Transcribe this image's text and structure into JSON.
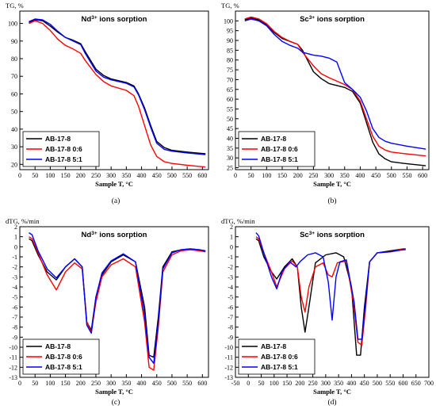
{
  "figure": {
    "panels": [
      {
        "id": "a",
        "caption": "(a)",
        "title_prefix": "Nd",
        "title_sup": "3+",
        "title_suffix": " ions sorption",
        "ylabel": "TG, %",
        "xlabel": "Sample T, °C",
        "legend": [
          "AB-17-8",
          "AB-17-8 0:6",
          "AB-17-8 5:1"
        ]
      },
      {
        "id": "b",
        "caption": "(b)",
        "title_prefix": "Sc",
        "title_sup": "3+",
        "title_suffix": " ions sorption",
        "ylabel": "TG, %",
        "xlabel": "Sample T, °C",
        "legend": [
          "AB-17-8",
          "AB-17-8 0:6",
          "AB-17-8 5:1"
        ]
      },
      {
        "id": "c",
        "caption": "(c)",
        "title_prefix": "Nd",
        "title_sup": "3+",
        "title_suffix": " ions sorption",
        "ylabel": "dTG, %/min",
        "xlabel": "Sample T, °C",
        "legend": [
          "AB-17-8",
          "AB-17-8 0:6",
          "AB-17-8 5:1"
        ]
      },
      {
        "id": "d",
        "caption": "(d)",
        "title_prefix": "Sc",
        "title_sup": "3+",
        "title_suffix": " ions sorption",
        "ylabel": "dTG, %/min",
        "xlabel": "Sample T, °C",
        "legend": [
          "AB-17-8",
          "AB-17-8 0:6",
          "AB-17-8 5:1"
        ]
      }
    ]
  },
  "chart_data": [
    {
      "type": "line",
      "panel": "a",
      "title": "Nd3+ ions sorption",
      "xlabel": "Sample T, °C",
      "ylabel": "TG, %",
      "xlim": [
        0,
        620
      ],
      "ylim": [
        17,
        107
      ],
      "xticks": [
        0,
        50,
        100,
        150,
        200,
        250,
        300,
        350,
        400,
        450,
        500,
        550,
        600
      ],
      "yticks": [
        20,
        30,
        40,
        50,
        60,
        70,
        80,
        90,
        100
      ],
      "legend_position": "bottom-left",
      "series": [
        {
          "name": "AB-17-8",
          "color": "#000000",
          "x": [
            30,
            50,
            75,
            100,
            125,
            150,
            175,
            200,
            215,
            250,
            275,
            300,
            350,
            375,
            390,
            410,
            430,
            450,
            475,
            500,
            550,
            610
          ],
          "y": [
            100.5,
            102,
            101.5,
            98.5,
            95,
            92,
            90.5,
            88.5,
            84,
            74,
            70.5,
            68.5,
            66.5,
            64.5,
            60,
            52,
            42,
            33,
            29.5,
            28,
            27,
            26
          ]
        },
        {
          "name": "AB-17-8 0:6",
          "color": "#ff0000",
          "x": [
            30,
            50,
            75,
            100,
            125,
            150,
            175,
            200,
            215,
            250,
            275,
            300,
            350,
            375,
            390,
            410,
            430,
            450,
            475,
            500,
            550,
            610
          ],
          "y": [
            100,
            101.5,
            100,
            96,
            91,
            87.5,
            85.5,
            83,
            79,
            71,
            67,
            64.5,
            62,
            59,
            53,
            42,
            31,
            24.5,
            21.5,
            20.5,
            19.5,
            18.5
          ]
        },
        {
          "name": "AB-17-8 5:1",
          "color": "#0000ff",
          "x": [
            30,
            50,
            75,
            100,
            125,
            150,
            175,
            200,
            215,
            250,
            275,
            300,
            350,
            375,
            390,
            410,
            430,
            450,
            475,
            500,
            550,
            610
          ],
          "y": [
            101,
            102.5,
            102,
            99.5,
            95.5,
            92,
            90,
            88,
            83,
            73,
            69.5,
            68,
            66,
            64,
            59.5,
            51,
            41,
            32,
            28.5,
            27.5,
            26.5,
            25.5
          ]
        }
      ]
    },
    {
      "type": "line",
      "panel": "b",
      "title": "Sc3+ ions sorption",
      "xlabel": "Sample T, °C",
      "ylabel": "TG, %",
      "xlim": [
        0,
        620
      ],
      "ylim": [
        24,
        105
      ],
      "xticks": [
        0,
        50,
        100,
        150,
        200,
        250,
        300,
        350,
        400,
        450,
        500,
        550,
        600
      ],
      "yticks": [
        25,
        30,
        35,
        40,
        45,
        50,
        55,
        60,
        65,
        70,
        75,
        80,
        85,
        90,
        95,
        100
      ],
      "legend_position": "bottom-left",
      "series": [
        {
          "name": "AB-17-8",
          "color": "#000000",
          "x": [
            30,
            50,
            75,
            100,
            125,
            150,
            175,
            200,
            215,
            250,
            275,
            300,
            350,
            375,
            400,
            420,
            440,
            460,
            480,
            500,
            550,
            610
          ],
          "y": [
            100.5,
            101.5,
            100.5,
            98,
            94,
            91,
            89.5,
            88,
            85,
            74,
            70.5,
            68,
            66,
            64,
            58,
            48,
            38,
            32,
            29.5,
            28,
            27,
            26
          ]
        },
        {
          "name": "AB-17-8 0:6",
          "color": "#ff0000",
          "x": [
            30,
            50,
            75,
            100,
            125,
            150,
            175,
            200,
            215,
            250,
            275,
            300,
            350,
            375,
            400,
            420,
            440,
            460,
            480,
            500,
            550,
            610
          ],
          "y": [
            101,
            102,
            101,
            98.5,
            94.5,
            91.5,
            89.5,
            88,
            84,
            77,
            73,
            71,
            67.5,
            65,
            59,
            50,
            41,
            36,
            34,
            33,
            32,
            31
          ]
        },
        {
          "name": "AB-17-8 5:1",
          "color": "#0000ff",
          "x": [
            30,
            50,
            75,
            100,
            125,
            150,
            175,
            200,
            215,
            250,
            275,
            300,
            325,
            350,
            375,
            400,
            420,
            440,
            460,
            480,
            500,
            550,
            610
          ],
          "y": [
            100,
            101,
            100,
            97.5,
            93,
            89.5,
            87.5,
            86,
            84,
            82.5,
            82,
            81,
            79,
            68.5,
            65,
            61,
            54,
            45,
            40.5,
            38.5,
            37.5,
            36,
            34.5
          ]
        }
      ]
    },
    {
      "type": "line",
      "panel": "c",
      "title": "Nd3+ ions sorption",
      "xlabel": "Sample T, °C",
      "ylabel": "dTG, %/min",
      "xlim": [
        0,
        620
      ],
      "ylim": [
        -13,
        2
      ],
      "xticks": [
        0,
        50,
        100,
        150,
        200,
        250,
        300,
        350,
        400,
        450,
        500,
        550,
        600
      ],
      "yticks": [
        -13,
        -12,
        -11,
        -10,
        -9,
        -8,
        -7,
        -6,
        -5,
        -4,
        -3,
        -2,
        -1,
        0,
        1,
        2
      ],
      "legend_position": "bottom-left",
      "series": [
        {
          "name": "AB-17-8",
          "color": "#000000",
          "x": [
            30,
            40,
            60,
            90,
            120,
            150,
            180,
            205,
            220,
            235,
            250,
            270,
            300,
            340,
            380,
            410,
            425,
            440,
            455,
            470,
            500,
            530,
            560,
            590,
            610
          ],
          "y": [
            0.8,
            0.6,
            -0.8,
            -2.5,
            -3.3,
            -2,
            -1.2,
            -2,
            -7.5,
            -8.3,
            -5,
            -2.8,
            -1.5,
            -0.8,
            -1.5,
            -6,
            -10.8,
            -11,
            -7,
            -2,
            -0.5,
            -0.3,
            -0.2,
            -0.3,
            -0.4
          ]
        },
        {
          "name": "AB-17-8 0:6",
          "color": "#ff0000",
          "x": [
            30,
            40,
            60,
            90,
            120,
            150,
            180,
            205,
            220,
            235,
            250,
            270,
            300,
            340,
            380,
            410,
            425,
            440,
            455,
            470,
            500,
            530,
            560,
            590,
            610
          ],
          "y": [
            1,
            0.8,
            -0.6,
            -2.8,
            -4.3,
            -2.5,
            -1.6,
            -2.2,
            -7.5,
            -8.5,
            -5.5,
            -3,
            -1.8,
            -1.2,
            -2,
            -7.5,
            -12,
            -12.3,
            -8,
            -2.5,
            -0.8,
            -0.4,
            -0.3,
            -0.4,
            -0.5
          ]
        },
        {
          "name": "AB-17-8 5:1",
          "color": "#0000ff",
          "x": [
            30,
            40,
            60,
            90,
            120,
            150,
            180,
            205,
            220,
            235,
            250,
            270,
            300,
            340,
            380,
            410,
            425,
            440,
            455,
            470,
            500,
            530,
            560,
            590,
            610
          ],
          "y": [
            1.4,
            1.2,
            -0.4,
            -2.2,
            -3.1,
            -2,
            -1.2,
            -2,
            -7.8,
            -8.6,
            -5,
            -2.6,
            -1.4,
            -0.7,
            -1.5,
            -6.8,
            -11,
            -11.6,
            -7.5,
            -2.2,
            -0.6,
            -0.3,
            -0.2,
            -0.3,
            -0.4
          ]
        }
      ]
    },
    {
      "type": "line",
      "panel": "d",
      "title": "Sc3+ ions sorption",
      "xlabel": "Sample T, °C",
      "ylabel": "dTG, %/min",
      "xlim": [
        -50,
        700
      ],
      "ylim": [
        -13,
        2
      ],
      "xticks": [
        -50,
        0,
        50,
        100,
        150,
        200,
        250,
        300,
        350,
        400,
        450,
        500,
        550,
        600,
        650,
        700
      ],
      "yticks": [
        -13,
        -12,
        -11,
        -10,
        -9,
        -8,
        -7,
        -6,
        -5,
        -4,
        -3,
        -2,
        -1,
        0,
        1,
        2
      ],
      "legend_position": "bottom-left",
      "series": [
        {
          "name": "AB-17-8",
          "color": "#000000",
          "x": [
            30,
            40,
            60,
            90,
            110,
            140,
            170,
            190,
            205,
            220,
            235,
            260,
            300,
            340,
            370,
            400,
            420,
            435,
            450,
            470,
            500,
            550,
            600,
            610
          ],
          "y": [
            0.8,
            0.6,
            -1,
            -2.5,
            -3.2,
            -2,
            -1.2,
            -2,
            -6,
            -8.5,
            -6,
            -1.6,
            -0.8,
            -0.6,
            -1,
            -4,
            -10.8,
            -10.8,
            -6,
            -1.5,
            -0.6,
            -0.4,
            -0.2,
            -0.2
          ]
        },
        {
          "name": "AB-17-8 0:6",
          "color": "#ff0000",
          "x": [
            30,
            40,
            60,
            90,
            110,
            140,
            170,
            190,
            205,
            220,
            235,
            260,
            290,
            310,
            325,
            345,
            380,
            410,
            425,
            440,
            455,
            470,
            500,
            550,
            600,
            610
          ],
          "y": [
            1,
            0.8,
            -0.6,
            -2.5,
            -4,
            -2.2,
            -1.4,
            -2,
            -5,
            -6.5,
            -4,
            -2,
            -1.6,
            -2.8,
            -3,
            -1.6,
            -1.4,
            -6,
            -9.5,
            -9.8,
            -6,
            -1.5,
            -0.6,
            -0.5,
            -0.2,
            -0.2
          ]
        },
        {
          "name": "AB-17-8 5:1",
          "color": "#0000ff",
          "x": [
            30,
            40,
            60,
            90,
            110,
            130,
            160,
            175,
            185,
            200,
            230,
            260,
            290,
            310,
            325,
            340,
            355,
            380,
            410,
            425,
            440,
            455,
            470,
            500,
            550,
            600,
            610
          ],
          "y": [
            1.4,
            1.1,
            -0.6,
            -3,
            -4.2,
            -2.5,
            -1.5,
            -1.8,
            -2,
            -1.5,
            -0.8,
            -0.6,
            -1,
            -3.5,
            -7.3,
            -3,
            -1.5,
            -1.3,
            -5.5,
            -9.2,
            -9.2,
            -5.5,
            -1.5,
            -0.6,
            -0.5,
            -0.3,
            -0.3
          ]
        }
      ]
    }
  ]
}
